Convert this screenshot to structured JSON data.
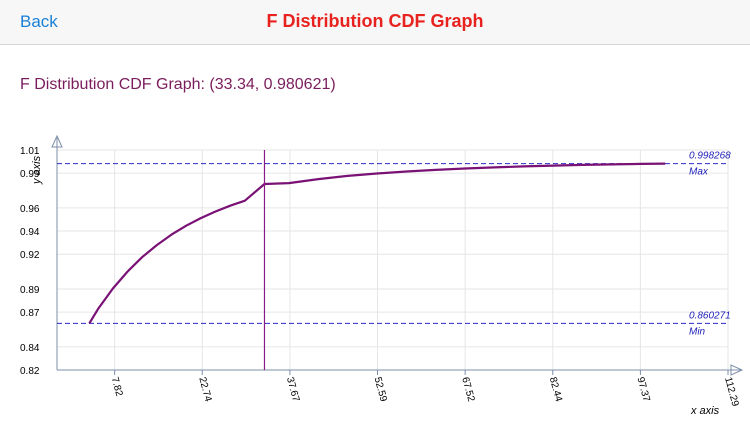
{
  "nav": {
    "back_label": "Back",
    "title": "F Distribution CDF Graph"
  },
  "subtitle": "F Distribution CDF Graph: (33.34, 0.980621)",
  "chart_data": {
    "type": "line",
    "xlabel": "x axis",
    "ylabel": "y axis",
    "x_ticks": [
      "7.82",
      "22.74",
      "37.67",
      "52.59",
      "67.52",
      "82.44",
      "97.37",
      "112.29"
    ],
    "y_ticks": [
      "1.01",
      "0.99",
      "0.96",
      "0.94",
      "0.92",
      "0.89",
      "0.87",
      "0.84",
      "0.82"
    ],
    "xlim": [
      -2.0,
      112.29
    ],
    "ylim": [
      0.82,
      1.01
    ],
    "grid": true,
    "series": [
      {
        "color": "#7a1175",
        "x": [
          3.5,
          5,
          7.5,
          10,
          12.5,
          15,
          17.5,
          20,
          22.5,
          25,
          27.5,
          30,
          33.34,
          37.5,
          42.5,
          47.5,
          52.5,
          57.5,
          62.5,
          67.5,
          72.5,
          77.5,
          82.5,
          87.5,
          92.5,
          97.5,
          101.6
        ],
        "y": [
          0.860271,
          0.8728,
          0.8903,
          0.905,
          0.9174,
          0.9279,
          0.9369,
          0.9446,
          0.9512,
          0.9569,
          0.9619,
          0.9662,
          0.980621,
          0.9814,
          0.9849,
          0.9876,
          0.9897,
          0.9914,
          0.9928,
          0.994,
          0.995,
          0.9958,
          0.9965,
          0.9971,
          0.9976,
          0.998,
          0.998268
        ]
      }
    ],
    "cursor": {
      "x": 33.34,
      "y": 0.980621,
      "color": "#8a1a8a"
    },
    "max_line": {
      "value": 0.998268,
      "value_label": "0.998268",
      "label": "Max",
      "color": "#2b2bc9"
    },
    "min_line": {
      "value": 0.860271,
      "value_label": "0.860271",
      "label": "Min",
      "color": "#2b2bc9"
    },
    "axis_color": "#7d8fa8"
  }
}
